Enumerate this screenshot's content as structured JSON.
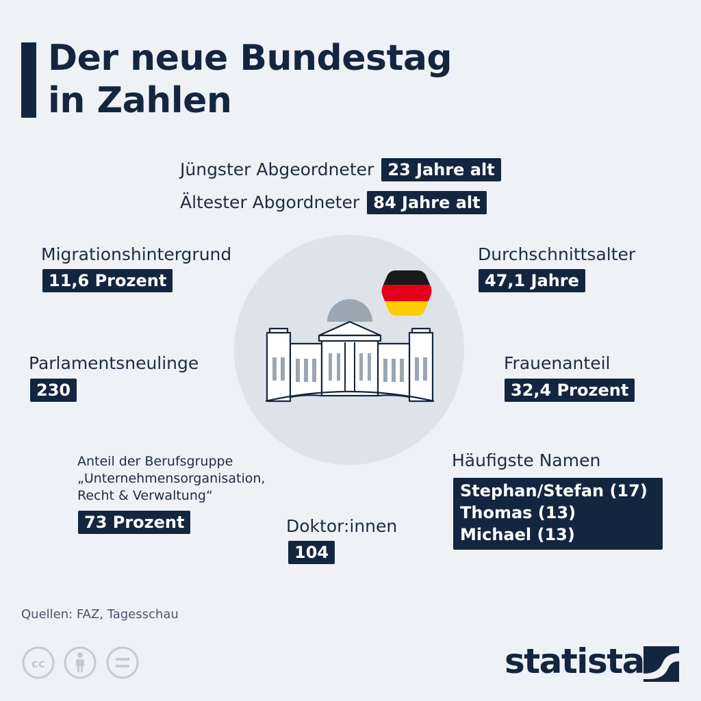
{
  "title": {
    "line1": "Der neue Bundestag",
    "line2": "in Zahlen"
  },
  "youngest": {
    "label": "Jüngster Abgeordneter",
    "value": "23 Jahre alt"
  },
  "oldest": {
    "label": "Ältester Abgordneter",
    "value": "84 Jahre alt"
  },
  "migration": {
    "label": "Migrationshintergrund",
    "value": "11,6 Prozent"
  },
  "average_age": {
    "label": "Durchschnittsalter",
    "value": "47,1 Jahre"
  },
  "newcomers": {
    "label": "Parlamentsneulinge",
    "value": "230"
  },
  "women": {
    "label": "Frauenanteil",
    "value": "32,4 Prozent"
  },
  "profession": {
    "line1": "Anteil der Berufsgruppe",
    "line2": "„Unternehmensorganisation,",
    "line3": "Recht & Verwaltung“",
    "value": "73 Prozent"
  },
  "doctors": {
    "label": "Doktor:innen",
    "value": "104"
  },
  "names": {
    "label": "Häufigste Namen",
    "items": [
      "Stephan/Stefan (17)",
      "Thomas (13)",
      "Michael (13)"
    ]
  },
  "source": "Quellen: FAZ, Tagesschau",
  "brand": "statista",
  "icons": [
    "cc-icon",
    "by-person-icon",
    "nd-equals-icon",
    "reichstag-icon",
    "german-flag-icon",
    "statista-logo-icon"
  ],
  "colors": {
    "background": "#eef1f6",
    "navy": "#14263f",
    "circle": "#dde3e9",
    "dome": "#9aa7b2",
    "flag_black": "#1a1a1a",
    "flag_red": "#e3001b",
    "flag_gold": "#ffcc00"
  }
}
